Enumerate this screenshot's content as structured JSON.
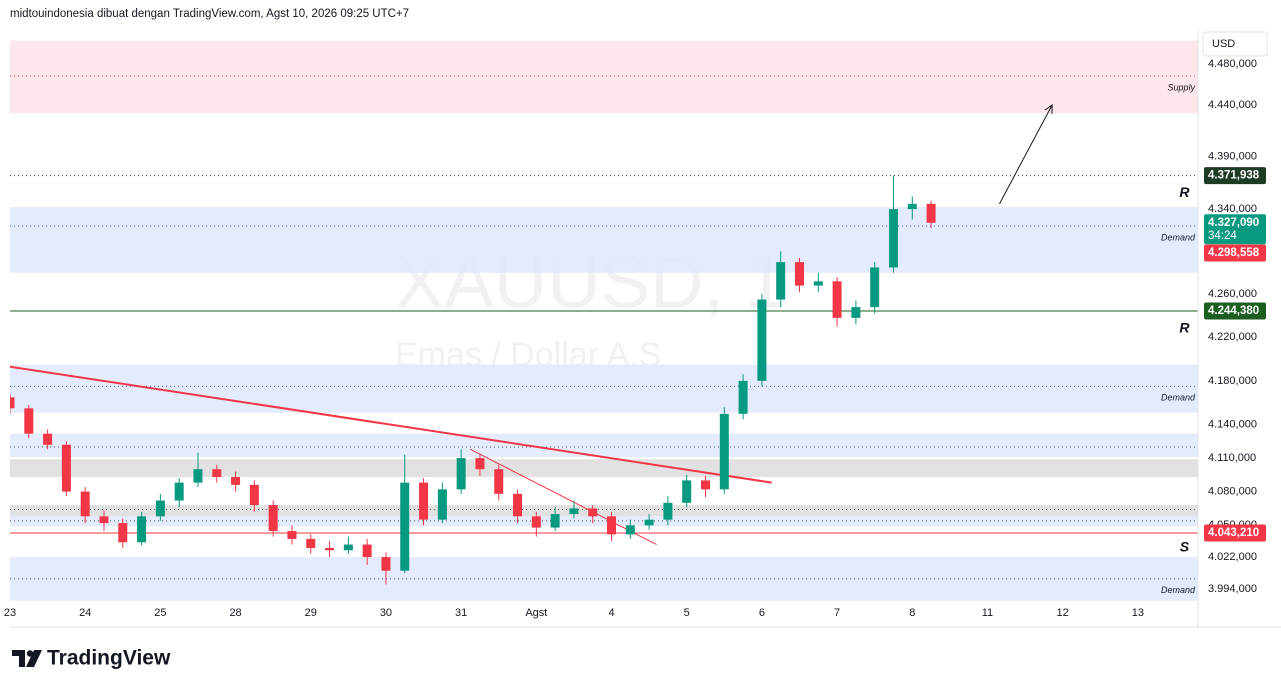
{
  "header": "midtouindonesia dibuat dengan TradingView.com, Agst 10, 2026 09:25 UTC+7",
  "logo": "TradingView",
  "chart_data": {
    "type": "candlestick",
    "watermark": [
      "XAUUSD, 1",
      "Emas / Dollar A.S"
    ],
    "currency": "USD",
    "log_scale": true,
    "grid": false,
    "xlim": [
      0,
      15.8
    ],
    "ylim": [
      3984.4,
      4513.4
    ],
    "xticks": [
      {
        "value": 0,
        "label": "23"
      },
      {
        "value": 1,
        "label": "24"
      },
      {
        "value": 2,
        "label": "25"
      },
      {
        "value": 3,
        "label": "28"
      },
      {
        "value": 4,
        "label": "29"
      },
      {
        "value": 5,
        "label": "30"
      },
      {
        "value": 6,
        "label": "31"
      },
      {
        "value": 7,
        "label": "Agst"
      },
      {
        "value": 8,
        "label": "4"
      },
      {
        "value": 9,
        "label": "5"
      },
      {
        "value": 10,
        "label": "6"
      },
      {
        "value": 11,
        "label": "7"
      },
      {
        "value": 12,
        "label": "8"
      },
      {
        "value": 13,
        "label": "11"
      },
      {
        "value": 14,
        "label": "12"
      },
      {
        "value": 15,
        "label": "13"
      }
    ],
    "yticks": [
      {
        "value": 4480,
        "label": "4.480,000"
      },
      {
        "value": 4440,
        "label": "4.440,000"
      },
      {
        "value": 4390,
        "label": "4.390,000"
      },
      {
        "value": 4340,
        "label": "4.340,000"
      },
      {
        "value": 4260,
        "label": "4.260,000"
      },
      {
        "value": 4220,
        "label": "4.220,000"
      },
      {
        "value": 4180,
        "label": "4.180,000"
      },
      {
        "value": 4140,
        "label": "4.140,000"
      },
      {
        "value": 4110,
        "label": "4.110,000"
      },
      {
        "value": 4080,
        "label": "4.080,000"
      },
      {
        "value": 4050,
        "label": "4.050,000"
      },
      {
        "value": 4022,
        "label": "4.022,000"
      },
      {
        "value": 3994,
        "label": "3.994,000"
      }
    ],
    "x": [
      0,
      0.25,
      0.5,
      0.75,
      1,
      1.25,
      1.5,
      1.75,
      2,
      2.25,
      2.5,
      2.75,
      3,
      3.25,
      3.5,
      3.75,
      4,
      4.25,
      4.5,
      4.75,
      5,
      5.25,
      5.5,
      5.75,
      6,
      6.25,
      6.5,
      6.75,
      7,
      7.25,
      7.5,
      7.75,
      8,
      8.25,
      8.5,
      8.75,
      9,
      9.25,
      9.5,
      9.75,
      10,
      10.25,
      10.5,
      10.75,
      11,
      11.25,
      11.5,
      11.75,
      12,
      12.25
    ],
    "open": [
      4165,
      4155,
      4132,
      4122,
      4080,
      4058,
      4052,
      4035,
      4058,
      4072,
      4088,
      4100,
      4093,
      4086,
      4068,
      4045,
      4038,
      4030,
      4028,
      4033,
      4022,
      4010,
      4088,
      4055,
      4082,
      4110,
      4100,
      4078,
      4058,
      4048,
      4060,
      4065,
      4058,
      4042,
      4050,
      4055,
      4070,
      4090,
      4082,
      4150,
      4180,
      4255,
      4290,
      4268,
      4272,
      4238,
      4248,
      4285,
      4340,
      4345
    ],
    "high": [
      4168,
      4158,
      4136,
      4125,
      4084,
      4063,
      4056,
      4062,
      4078,
      4092,
      4115,
      4104,
      4098,
      4090,
      4072,
      4050,
      4042,
      4036,
      4040,
      4038,
      4026,
      4113,
      4092,
      4088,
      4118,
      4114,
      4104,
      4082,
      4062,
      4066,
      4072,
      4068,
      4062,
      4055,
      4060,
      4076,
      4095,
      4094,
      4156,
      4186,
      4260,
      4300,
      4294,
      4280,
      4276,
      4254,
      4290,
      4371.938,
      4352,
      4348
    ],
    "low": [
      4150,
      4128,
      4118,
      4076,
      4052,
      4045,
      4030,
      4032,
      4054,
      4066,
      4084,
      4088,
      4080,
      4062,
      4040,
      4033,
      4025,
      4022,
      4025,
      4015,
      3998,
      4008,
      4050,
      4052,
      4078,
      4094,
      4072,
      4052,
      4040,
      4045,
      4056,
      4052,
      4036,
      4038,
      4046,
      4050,
      4066,
      4075,
      4078,
      4145,
      4175,
      4248,
      4262,
      4262,
      4230,
      4232,
      4242,
      4280,
      4330,
      4322
    ],
    "close": [
      4155,
      4132,
      4122,
      4080,
      4058,
      4052,
      4035,
      4058,
      4072,
      4088,
      4100,
      4093,
      4086,
      4068,
      4045,
      4038,
      4030,
      4028,
      4033,
      4022,
      4010,
      4088,
      4055,
      4082,
      4110,
      4100,
      4078,
      4058,
      4048,
      4060,
      4065,
      4058,
      4042,
      4050,
      4055,
      4070,
      4090,
      4082,
      4150,
      4180,
      4255,
      4290,
      4268,
      4272,
      4238,
      4248,
      4285,
      4340,
      4345,
      4327.09
    ],
    "up_color": "#089981",
    "down_color": "#f23645",
    "zones": [
      {
        "label": "Supply",
        "range": [
          4432,
          4503
        ],
        "level": 4468,
        "color": "#fde3e6",
        "text_color": "#f23645"
      },
      {
        "label": "Demand",
        "range": [
          4280,
          4342
        ],
        "level": 4324,
        "color": "#dfe8fc",
        "text_color": "#2962ff"
      },
      {
        "label": "Demand",
        "range": [
          4151,
          4195
        ],
        "level": 4175,
        "color": "#dfe8fc",
        "text_color": "#2962ff"
      },
      {
        "range": [
          4111,
          4132
        ],
        "level": 4120,
        "color": "#dfe8fc"
      },
      {
        "range": [
          4093,
          4109
        ],
        "color": "#dcdcdc"
      },
      {
        "range": [
          4058,
          4068
        ],
        "level": 4064,
        "color": "#dcdcdc"
      },
      {
        "range": [
          4049,
          4058
        ],
        "level": 4054,
        "color": "#dfe8fc"
      },
      {
        "label": "Demand",
        "range": [
          3985,
          4022
        ],
        "level": 4003,
        "color": "#dfe8fc",
        "text_color": "#2962ff"
      }
    ],
    "price_labels": [
      {
        "value": 4371.938,
        "label": "4.371,938",
        "color": "#1e3b24",
        "line": "dotted"
      },
      {
        "value": 4327.09,
        "label": "4.327,090",
        "color": "#089981",
        "countdown": "34:24"
      },
      {
        "value": 4298.558,
        "label": "4.298,558",
        "color": "#f23645"
      },
      {
        "value": 4244.38,
        "label": "4.244,380",
        "color": "#1b5e20",
        "line": "solid"
      },
      {
        "value": 4043.21,
        "label": "4.043,210",
        "color": "#f23645",
        "line": "solid"
      }
    ],
    "markers": [
      {
        "label": "R",
        "x": 15.62,
        "value": 4355,
        "color": "#1b5e20"
      },
      {
        "label": "R",
        "x": 15.62,
        "value": 4228,
        "color": "#1b5e20"
      },
      {
        "label": "S",
        "x": 15.62,
        "value": 4030,
        "color": "#f23645"
      }
    ],
    "trendlines": [
      {
        "x": [
          0,
          10.13
        ],
        "y": [
          4193,
          4088
        ],
        "color": "#f23645",
        "width": 2
      },
      {
        "x": [
          6.12,
          8.6
        ],
        "y": [
          4118,
          4033
        ],
        "color": "#f23645",
        "width": 1
      }
    ],
    "arrow": {
      "x": [
        13.16,
        13.86
      ],
      "y": [
        4345,
        4440
      ],
      "color": "#131722"
    }
  }
}
